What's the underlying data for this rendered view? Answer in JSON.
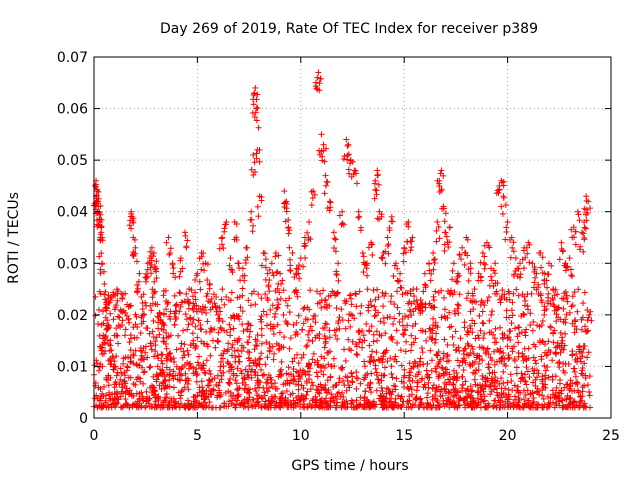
{
  "chart_data": {
    "type": "scatter",
    "title": "Day 269 of 2019, Rate Of TEC Index for receiver p389",
    "xlabel": "GPS time / hours",
    "ylabel": "ROTI / TECUs",
    "xlim": [
      0,
      25
    ],
    "ylim": [
      0,
      0.07
    ],
    "grid": true,
    "xticks": [
      0,
      5,
      10,
      15,
      20,
      25
    ],
    "xtick_labels": [
      "0",
      "5",
      "10",
      "15",
      "20",
      "25"
    ],
    "yticks": [
      0,
      0.01,
      0.02,
      0.03,
      0.04,
      0.05,
      0.06,
      0.07
    ],
    "ytick_labels": [
      "0",
      "0.01",
      "0.02",
      "0.03",
      "0.04",
      "0.05",
      "0.06",
      "0.07"
    ],
    "marker": "plus",
    "marker_color": "#ff0000",
    "series": [
      {
        "name": "ROTI",
        "points": [
          [
            0.05,
            0.045
          ],
          [
            0.1,
            0.046
          ],
          [
            0.15,
            0.044
          ],
          [
            0.2,
            0.042
          ],
          [
            0.25,
            0.04
          ],
          [
            0.3,
            0.038
          ],
          [
            0.35,
            0.036
          ],
          [
            0.1,
            0.043
          ],
          [
            0.2,
            0.041
          ],
          [
            0.3,
            0.035
          ],
          [
            0.4,
            0.03
          ],
          [
            0.5,
            0.026
          ],
          [
            0.6,
            0.022
          ],
          [
            0.7,
            0.018
          ],
          [
            0.8,
            0.015
          ],
          [
            0.9,
            0.012
          ],
          [
            1.0,
            0.01
          ],
          [
            1.2,
            0.018
          ],
          [
            1.4,
            0.024
          ],
          [
            1.6,
            0.022
          ],
          [
            1.8,
            0.04
          ],
          [
            1.85,
            0.039
          ],
          [
            1.9,
            0.035
          ],
          [
            2.0,
            0.033
          ],
          [
            2.2,
            0.028
          ],
          [
            2.4,
            0.024
          ],
          [
            2.6,
            0.03
          ],
          [
            2.7,
            0.031
          ],
          [
            2.8,
            0.033
          ],
          [
            2.9,
            0.032
          ],
          [
            3.0,
            0.029
          ],
          [
            3.2,
            0.02
          ],
          [
            3.4,
            0.018
          ],
          [
            3.6,
            0.035
          ],
          [
            3.8,
            0.03
          ],
          [
            4.0,
            0.022
          ],
          [
            4.2,
            0.031
          ],
          [
            4.4,
            0.036
          ],
          [
            4.6,
            0.025
          ],
          [
            4.8,
            0.015
          ],
          [
            5.0,
            0.028
          ],
          [
            5.2,
            0.032
          ],
          [
            5.4,
            0.03
          ],
          [
            5.6,
            0.026
          ],
          [
            5.8,
            0.024
          ],
          [
            6.0,
            0.02
          ],
          [
            6.2,
            0.035
          ],
          [
            6.4,
            0.038
          ],
          [
            6.6,
            0.031
          ],
          [
            6.8,
            0.038
          ],
          [
            7.0,
            0.03
          ],
          [
            7.2,
            0.029
          ],
          [
            7.4,
            0.033
          ],
          [
            7.6,
            0.04
          ],
          [
            7.7,
            0.051
          ],
          [
            7.75,
            0.063
          ],
          [
            7.8,
            0.064
          ],
          [
            7.85,
            0.06
          ],
          [
            7.9,
            0.052
          ],
          [
            8.0,
            0.043
          ],
          [
            8.2,
            0.032
          ],
          [
            8.4,
            0.028
          ],
          [
            8.6,
            0.03
          ],
          [
            8.8,
            0.032
          ],
          [
            9.0,
            0.028
          ],
          [
            9.2,
            0.044
          ],
          [
            9.3,
            0.042
          ],
          [
            9.4,
            0.037
          ],
          [
            9.6,
            0.032
          ],
          [
            9.8,
            0.029
          ],
          [
            10.0,
            0.031
          ],
          [
            10.2,
            0.035
          ],
          [
            10.4,
            0.038
          ],
          [
            10.6,
            0.044
          ],
          [
            10.8,
            0.066
          ],
          [
            10.85,
            0.067
          ],
          [
            11.0,
            0.055
          ],
          [
            11.1,
            0.053
          ],
          [
            11.2,
            0.047
          ],
          [
            11.4,
            0.042
          ],
          [
            11.6,
            0.036
          ],
          [
            11.8,
            0.03
          ],
          [
            12.0,
            0.04
          ],
          [
            12.2,
            0.054
          ],
          [
            12.3,
            0.053
          ],
          [
            12.4,
            0.05
          ],
          [
            12.6,
            0.048
          ],
          [
            12.8,
            0.04
          ],
          [
            13.0,
            0.032
          ],
          [
            13.2,
            0.03
          ],
          [
            13.4,
            0.034
          ],
          [
            13.6,
            0.046
          ],
          [
            13.7,
            0.048
          ],
          [
            13.8,
            0.04
          ],
          [
            14.0,
            0.032
          ],
          [
            14.2,
            0.035
          ],
          [
            14.4,
            0.039
          ],
          [
            14.6,
            0.03
          ],
          [
            14.8,
            0.028
          ],
          [
            15.0,
            0.033
          ],
          [
            15.2,
            0.038
          ],
          [
            15.4,
            0.035
          ],
          [
            15.6,
            0.025
          ],
          [
            15.8,
            0.022
          ],
          [
            16.0,
            0.028
          ],
          [
            16.2,
            0.03
          ],
          [
            16.4,
            0.032
          ],
          [
            16.6,
            0.038
          ],
          [
            16.7,
            0.046
          ],
          [
            16.8,
            0.048
          ],
          [
            16.9,
            0.041
          ],
          [
            17.0,
            0.036
          ],
          [
            17.2,
            0.037
          ],
          [
            17.4,
            0.03
          ],
          [
            17.6,
            0.028
          ],
          [
            17.8,
            0.033
          ],
          [
            18.0,
            0.035
          ],
          [
            18.2,
            0.03
          ],
          [
            18.4,
            0.025
          ],
          [
            18.6,
            0.028
          ],
          [
            18.8,
            0.032
          ],
          [
            19.0,
            0.034
          ],
          [
            19.2,
            0.029
          ],
          [
            19.4,
            0.03
          ],
          [
            19.6,
            0.045
          ],
          [
            19.7,
            0.046
          ],
          [
            19.8,
            0.043
          ],
          [
            20.0,
            0.038
          ],
          [
            20.2,
            0.035
          ],
          [
            20.4,
            0.031
          ],
          [
            20.6,
            0.03
          ],
          [
            20.8,
            0.033
          ],
          [
            21.0,
            0.034
          ],
          [
            21.2,
            0.03
          ],
          [
            21.4,
            0.028
          ],
          [
            21.6,
            0.032
          ],
          [
            21.8,
            0.028
          ],
          [
            22.0,
            0.03
          ],
          [
            22.2,
            0.025
          ],
          [
            22.4,
            0.024
          ],
          [
            22.6,
            0.034
          ],
          [
            22.8,
            0.03
          ],
          [
            23.0,
            0.031
          ],
          [
            23.2,
            0.037
          ],
          [
            23.4,
            0.04
          ],
          [
            23.6,
            0.036
          ],
          [
            23.7,
            0.038
          ],
          [
            23.8,
            0.043
          ],
          [
            23.9,
            0.042
          ],
          [
            23.95,
            0.02
          ]
        ],
        "background_band": {
          "description": "dense scatter of ROTI points sampled continuously across the day",
          "x_range": [
            0,
            24
          ],
          "typical_y_range": [
            0.002,
            0.025
          ]
        }
      }
    ]
  }
}
